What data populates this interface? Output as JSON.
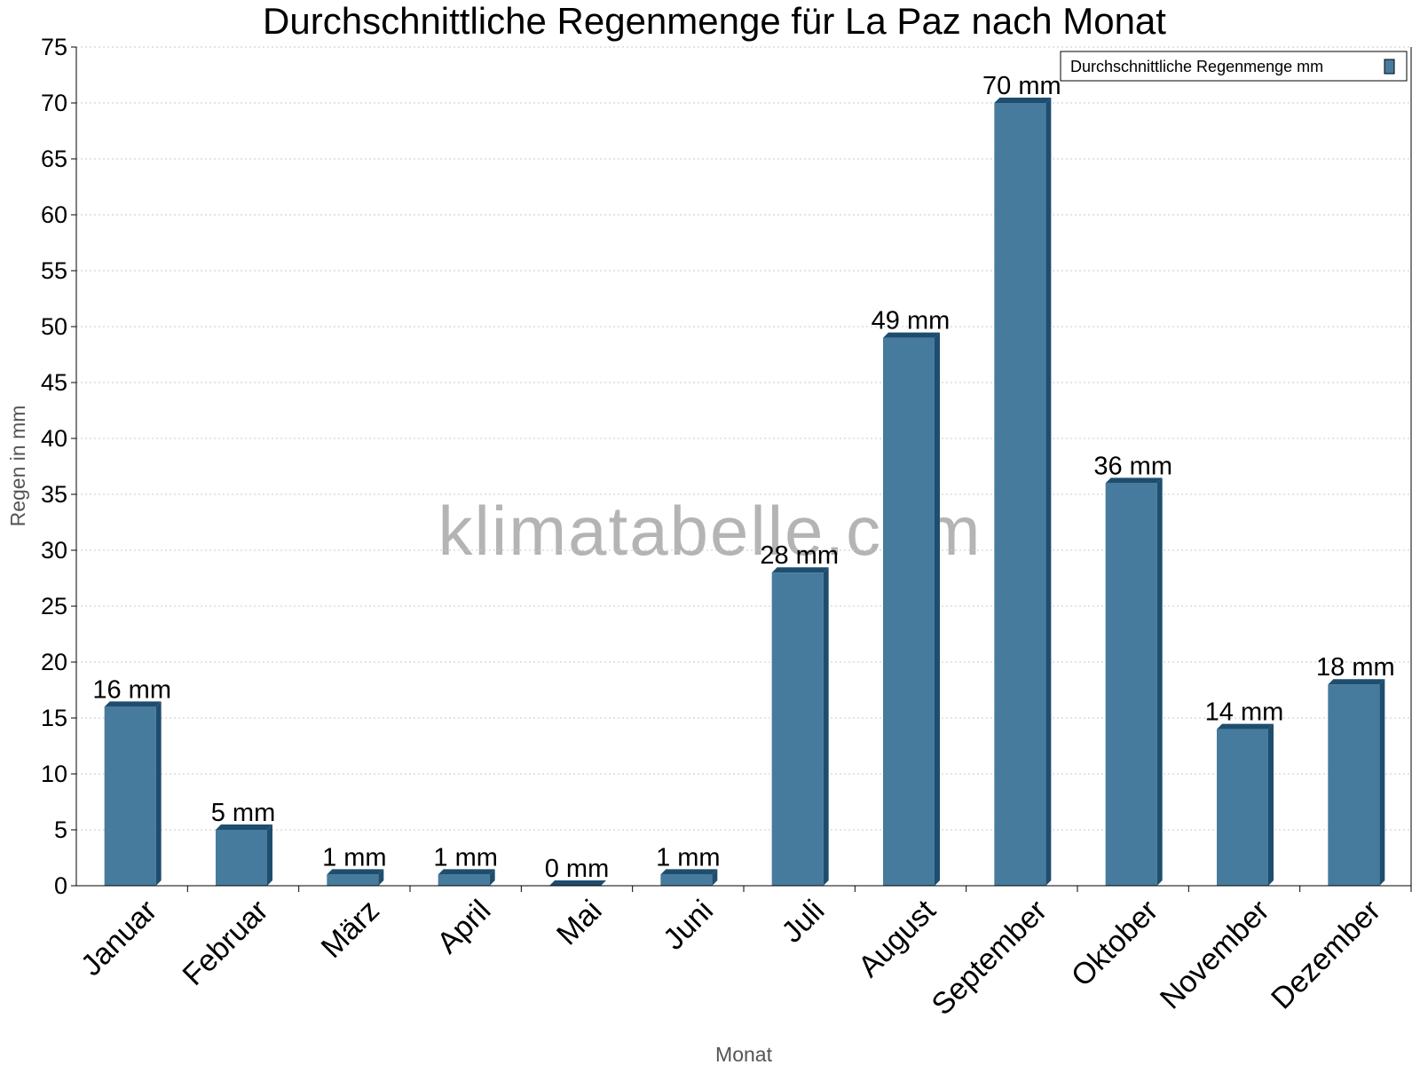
{
  "chart_data": {
    "type": "bar",
    "title": "Durchschnittliche Regenmenge für La Paz nach Monat",
    "xlabel": "Monat",
    "ylabel": "Regen in mm",
    "categories": [
      "Januar",
      "Februar",
      "März",
      "April",
      "Mai",
      "Juni",
      "Juli",
      "August",
      "September",
      "Oktober",
      "November",
      "Dezember"
    ],
    "series": [
      {
        "name": "Durchschnittliche Regenmenge mm",
        "values": [
          16,
          5,
          1,
          1,
          0,
          1,
          28,
          49,
          70,
          36,
          14,
          18
        ],
        "labels": [
          "16 mm",
          "5 mm",
          "1 mm",
          "1 mm",
          "0 mm",
          "1 mm",
          "28 mm",
          "49 mm",
          "70 mm",
          "36 mm",
          "14 mm",
          "18 mm"
        ]
      }
    ],
    "ylim": [
      0,
      75
    ],
    "ytick_step": 5,
    "grid": "horizontal dotted",
    "legend_position": "top-right",
    "watermark": "klimatabelle.com",
    "colors": {
      "bar": "#467b9e",
      "bar_side": "#1f4d6e",
      "grid": "#c8c8c8"
    }
  }
}
